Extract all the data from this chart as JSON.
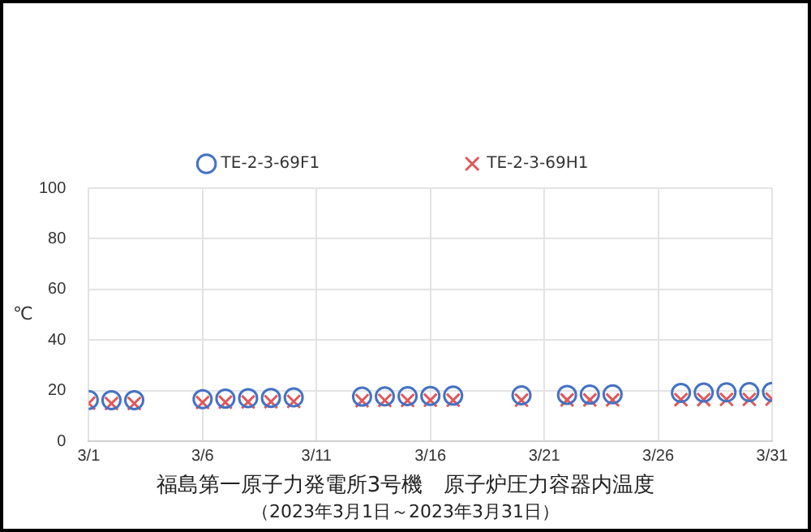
{
  "chart_data": {
    "type": "scatter",
    "title": "福島第一原子力発電所3号機　原子炉圧力容器内温度",
    "subtitle": "（2023年3月1日～2023年3月31日）",
    "ylabel": "℃",
    "x": [
      "2023-03-01",
      "2023-03-02",
      "2023-03-03",
      "2023-03-06",
      "2023-03-07",
      "2023-03-08",
      "2023-03-09",
      "2023-03-10",
      "2023-03-13",
      "2023-03-14",
      "2023-03-15",
      "2023-03-16",
      "2023-03-17",
      "2023-03-20",
      "2023-03-22",
      "2023-03-23",
      "2023-03-24",
      "2023-03-27",
      "2023-03-28",
      "2023-03-29",
      "2023-03-30",
      "2023-03-31"
    ],
    "series": [
      {
        "name": "TE-2-3-69F1",
        "color": "#4472c4",
        "marker": "circle",
        "values": [
          16.3,
          16.2,
          16.2,
          16.6,
          16.8,
          17.0,
          17.1,
          17.3,
          17.6,
          17.7,
          17.8,
          17.9,
          18.0,
          18.1,
          18.3,
          18.4,
          18.5,
          19.1,
          19.2,
          19.3,
          19.4,
          19.5
        ]
      },
      {
        "name": "TE-2-3-69H1",
        "color": "#e15759",
        "marker": "cross",
        "values": [
          15.0,
          14.9,
          14.9,
          15.3,
          15.4,
          15.5,
          15.6,
          15.7,
          16.0,
          16.1,
          16.1,
          16.2,
          16.2,
          16.2,
          16.3,
          16.3,
          16.3,
          16.4,
          16.4,
          16.5,
          16.5,
          16.6
        ]
      }
    ],
    "xlim": [
      "2023-03-01",
      "2023-03-31"
    ],
    "xticks": [
      {
        "value": "2023-03-01",
        "label": "3/1"
      },
      {
        "value": "2023-03-06",
        "label": "3/6"
      },
      {
        "value": "2023-03-11",
        "label": "3/11"
      },
      {
        "value": "2023-03-16",
        "label": "3/16"
      },
      {
        "value": "2023-03-21",
        "label": "3/21"
      },
      {
        "value": "2023-03-26",
        "label": "3/26"
      },
      {
        "value": "2023-03-31",
        "label": "3/31"
      }
    ],
    "ylim": [
      0,
      100
    ],
    "yticks": [
      0,
      20,
      40,
      60,
      80,
      100
    ],
    "grid": true,
    "legend": "top"
  }
}
